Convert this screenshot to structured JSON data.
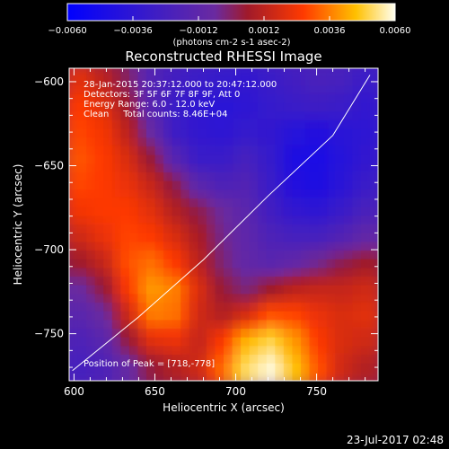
{
  "chart_data": {
    "type": "heatmap",
    "title": "Reconstructed RHESSI Image",
    "xlabel": "Heliocentric X (arcsec)",
    "ylabel": "Heliocentric Y (arcsec)",
    "xlim": [
      597,
      788
    ],
    "ylim": [
      -778,
      -592
    ],
    "x_ticks": [
      600,
      650,
      700,
      750
    ],
    "y_ticks": [
      -600,
      -650,
      -700,
      -750
    ],
    "x_tick_labels": [
      "600",
      "650",
      "700",
      "750"
    ],
    "y_tick_labels": [
      "-600",
      "-650",
      "-700",
      "-750"
    ],
    "colorbar": {
      "range": [
        -0.006,
        0.006
      ],
      "ticks": [
        -0.006,
        -0.0036,
        -0.0012,
        0.0012,
        0.0036,
        0.006
      ],
      "tick_labels": [
        "-0.0060",
        "-0.0036",
        "-0.0012",
        "0.0012",
        "0.0036",
        "0.0060"
      ],
      "unit_label": "(photons cm-2 s-1 asec-2)"
    },
    "annotations": {
      "time_range": "28-Jan-2015 20:37:12.000 to 20:47:12.000",
      "detectors": "Detectors: 3F 5F 6F 7F 8F 9F, Att 0",
      "energy_range": "Energy Range: 6.0 - 12.0 keV",
      "clean_counts": "Clean     Total counts: 8.46E+04",
      "peak": "Position of Peak = [718,-778]"
    },
    "limb_curve": [
      [
        599,
        -772
      ],
      [
        640,
        -740
      ],
      [
        680,
        -706
      ],
      [
        720,
        -668
      ],
      [
        760,
        -632
      ],
      [
        783,
        -596
      ]
    ],
    "image_values": [
      [
        0.002,
        0.0012,
        0.0,
        -0.0018,
        -0.0026,
        -0.003,
        -0.0032,
        -0.0034,
        -0.003,
        -0.0026,
        -0.0022,
        -0.0024,
        -0.003
      ],
      [
        0.0026,
        0.002,
        0.0006,
        -0.0016,
        -0.003,
        -0.0036,
        -0.0038,
        -0.0036,
        -0.0032,
        -0.003,
        -0.0028,
        -0.003,
        -0.0034
      ],
      [
        0.0028,
        0.0024,
        0.0012,
        -0.0008,
        -0.0028,
        -0.0034,
        -0.0036,
        -0.0032,
        -0.0034,
        -0.004,
        -0.0042,
        -0.0038,
        -0.0036
      ],
      [
        0.003,
        0.0026,
        0.0018,
        0.0004,
        -0.0016,
        -0.003,
        -0.003,
        -0.0024,
        -0.0032,
        -0.0044,
        -0.0046,
        -0.004,
        -0.0034
      ],
      [
        0.0028,
        0.0026,
        0.0022,
        0.0014,
        0.0002,
        -0.0014,
        -0.002,
        -0.0018,
        -0.003,
        -0.0042,
        -0.0044,
        -0.0038,
        -0.003
      ],
      [
        0.0024,
        0.0026,
        0.0026,
        0.002,
        0.001,
        0.0002,
        -0.0006,
        -0.0014,
        -0.0026,
        -0.0034,
        -0.0036,
        -0.003,
        -0.0022
      ],
      [
        0.0016,
        0.0022,
        0.0028,
        0.0026,
        0.0018,
        0.0008,
        -0.0004,
        -0.0012,
        -0.002,
        -0.0024,
        -0.0024,
        -0.0018,
        -0.001
      ],
      [
        0.0006,
        0.0014,
        0.003,
        0.0034,
        0.0026,
        0.0012,
        -0.0002,
        -0.001,
        -0.0014,
        -0.001,
        -0.0004,
        0.0002,
        0.0006
      ],
      [
        -0.0006,
        0.0004,
        0.0026,
        0.004,
        0.0036,
        0.0018,
        0.0004,
        -0.0002,
        0.0006,
        0.0012,
        0.0014,
        0.0014,
        0.0016
      ],
      [
        -0.0014,
        -0.0006,
        0.0016,
        0.0036,
        0.0034,
        0.0016,
        0.001,
        0.0018,
        0.003,
        0.0028,
        0.0022,
        0.0018,
        0.002
      ],
      [
        -0.002,
        -0.0014,
        0.0004,
        0.002,
        0.0022,
        0.0014,
        0.0026,
        0.0044,
        0.005,
        0.004,
        0.0026,
        0.0018,
        0.0016
      ],
      [
        -0.0024,
        -0.002,
        -0.0008,
        0.0004,
        0.001,
        0.0016,
        0.0034,
        0.0052,
        0.0058,
        0.0046,
        0.003,
        0.0016,
        0.001
      ]
    ]
  },
  "footer": {
    "timestamp": "23-Jul-2017 02:48"
  }
}
